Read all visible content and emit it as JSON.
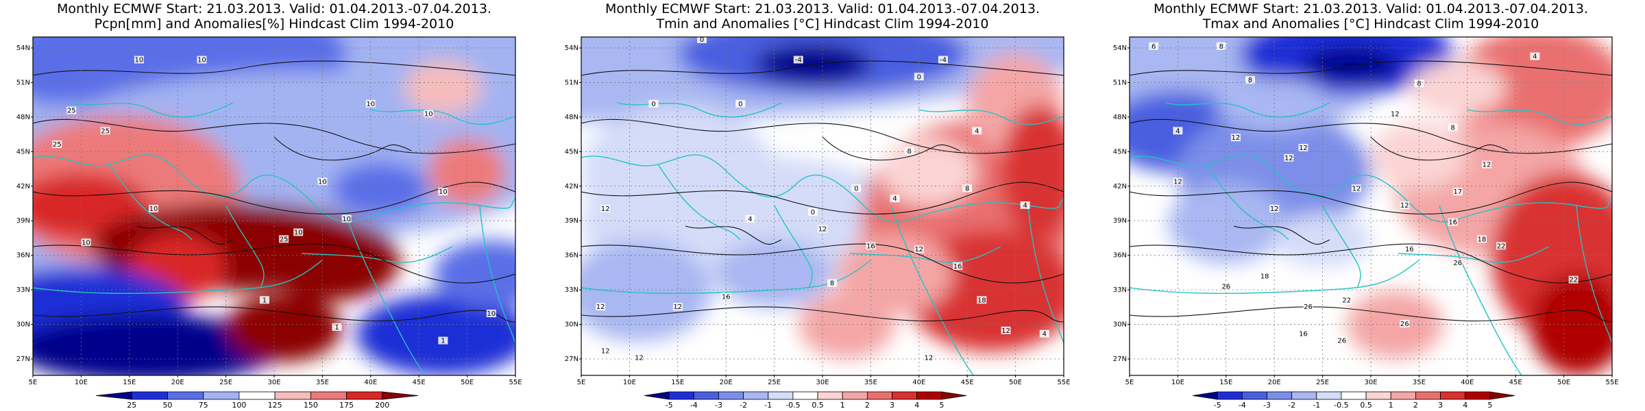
{
  "panels": [
    {
      "title_line1": "Monthly ECMWF Start: 21.03.2013. Valid: 01.04.2013.-07.04.2013.",
      "title_line2": "Pcpn[mm] and Anomalies[%] Hindcast Clim 1994-2010",
      "variable": "precipitation",
      "colorbar": {
        "labels": [
          "25",
          "50",
          "75",
          "100",
          "125",
          "150",
          "175",
          "200"
        ],
        "colors": [
          "#00008b",
          "#1f2fd6",
          "#5a6ee8",
          "#a3b3f2",
          "#ffffff",
          "#f6bcbc",
          "#ec7a7a",
          "#d92626",
          "#8b0000"
        ]
      },
      "contour_labels": [
        "10",
        "10",
        "10",
        "25",
        "25",
        "25",
        "10",
        "10",
        "25",
        "10",
        "10",
        "10",
        "10",
        "10",
        "10",
        "1",
        "1",
        "1"
      ],
      "lat_labels": [
        "54N",
        "51N",
        "48N",
        "45N",
        "42N",
        "39N",
        "36N",
        "33N",
        "30N",
        "27N"
      ],
      "lon_labels": [
        "5E",
        "10E",
        "15E",
        "20E",
        "25E",
        "30E",
        "35E",
        "40E",
        "45E",
        "50E",
        "55E"
      ]
    },
    {
      "title_line1": "Monthly ECMWF Start: 21.03.2013. Valid: 01.04.2013.-07.04.2013.",
      "title_line2": "Tmin and Anomalies [°C] Hindcast Clim 1994-2010",
      "variable": "tmin",
      "colorbar": {
        "labels": [
          "-5",
          "-4",
          "-3",
          "-2",
          "-1",
          "-0.5",
          "0.5",
          "1",
          "2",
          "3",
          "4",
          "5"
        ],
        "colors": [
          "#00008b",
          "#1f2fd6",
          "#4a5fe0",
          "#7b8ee8",
          "#a9b7f2",
          "#d4dcf8",
          "#ffffff",
          "#fbd4d4",
          "#f4a6a6",
          "#ea6f6f",
          "#d93030",
          "#b00000",
          "#8b0000"
        ]
      },
      "contour_labels": [
        "0",
        "-4",
        "-4",
        "0",
        "0",
        "0",
        "4",
        "8",
        "8",
        "4",
        "0",
        "4",
        "12",
        "4",
        "0",
        "12",
        "16",
        "12",
        "12",
        "16",
        "8",
        "18",
        "16",
        "12",
        "4",
        "12",
        "12",
        "12",
        "12"
      ],
      "lat_labels": [
        "54N",
        "51N",
        "48N",
        "45N",
        "42N",
        "39N",
        "36N",
        "33N",
        "30N",
        "27N"
      ],
      "lon_labels": [
        "5E",
        "10E",
        "15E",
        "20E",
        "25E",
        "30E",
        "35E",
        "40E",
        "45E",
        "50E",
        "55E"
      ]
    },
    {
      "title_line1": "Monthly ECMWF Start: 21.03.2013. Valid: 01.04.2013.-07.04.2013.",
      "title_line2": "Tmax and Anomalies [°C] Hindcast Clim 1994-2010",
      "variable": "tmax",
      "colorbar": {
        "labels": [
          "-5",
          "-4",
          "-3",
          "-2",
          "-1",
          "-0.5",
          "0.5",
          "1",
          "2",
          "3",
          "4",
          "5"
        ],
        "colors": [
          "#00008b",
          "#1f2fd6",
          "#4a5fe0",
          "#7b8ee8",
          "#a9b7f2",
          "#d4dcf8",
          "#ffffff",
          "#fbd4d4",
          "#f4a6a6",
          "#ea6f6f",
          "#d93030",
          "#b00000",
          "#8b0000"
        ]
      },
      "contour_labels": [
        "6",
        "8",
        "4",
        "8",
        "4",
        "8",
        "12",
        "12",
        "12",
        "12",
        "8",
        "12",
        "12",
        "17",
        "12",
        "12",
        "16",
        "18",
        "22",
        "16",
        "26",
        "22",
        "26",
        "22",
        "26",
        "26",
        "26",
        "18",
        "12",
        "16"
      ],
      "lat_labels": [
        "54N",
        "51N",
        "48N",
        "45N",
        "42N",
        "39N",
        "36N",
        "33N",
        "30N",
        "27N"
      ],
      "lon_labels": [
        "5E",
        "10E",
        "15E",
        "20E",
        "25E",
        "30E",
        "35E",
        "40E",
        "45E",
        "50E",
        "55E"
      ]
    }
  ]
}
